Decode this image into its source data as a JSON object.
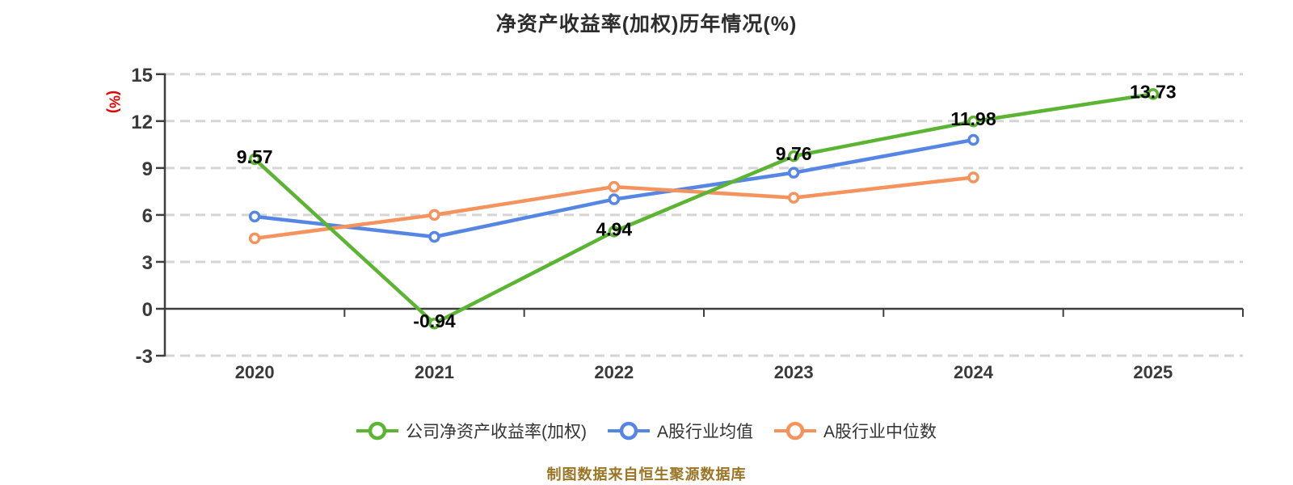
{
  "title": "净资产收益率(加权)历年情况(%)",
  "y_axis_name": "(%)",
  "footer": "制图数据来自恒生聚源数据库",
  "chart_data": {
    "type": "line",
    "title": "净资产收益率(加权)历年情况(%)",
    "ylabel": "(%)",
    "categories": [
      "2020",
      "2021",
      "2022",
      "2023",
      "2024",
      "2025"
    ],
    "series": [
      {
        "name": "公司净资产收益率(加权)",
        "color": "#5cb433",
        "values": [
          9.57,
          -0.94,
          4.94,
          9.76,
          11.98,
          13.73
        ],
        "labeled": true,
        "labels": [
          "9.57",
          "-0.94",
          "4.94",
          "9.76",
          "11.98",
          "13.73"
        ]
      },
      {
        "name": "A股行业均值",
        "color": "#5586e3",
        "values": [
          5.9,
          4.6,
          7.0,
          8.7,
          10.8,
          null
        ],
        "labeled": false
      },
      {
        "name": "A股行业中位数",
        "color": "#f4935e",
        "values": [
          4.5,
          6.0,
          7.8,
          7.1,
          8.4,
          null
        ],
        "labeled": false
      }
    ],
    "ylim": [
      -3,
      15
    ],
    "yticks": [
      15,
      12,
      9,
      6,
      3,
      0,
      -3
    ],
    "grid": "dashed horizontal",
    "zero_axis": "solid",
    "legend_position": "bottom"
  },
  "colors": {
    "grid": "#d5d5d5",
    "axis": "#3f3f3f",
    "tick_text": "#3a3a3a",
    "title_text": "#2d2d2d",
    "y_name_text": "#e60000",
    "footer_text": "#9a7524",
    "marker_fill": "#ffffff"
  }
}
